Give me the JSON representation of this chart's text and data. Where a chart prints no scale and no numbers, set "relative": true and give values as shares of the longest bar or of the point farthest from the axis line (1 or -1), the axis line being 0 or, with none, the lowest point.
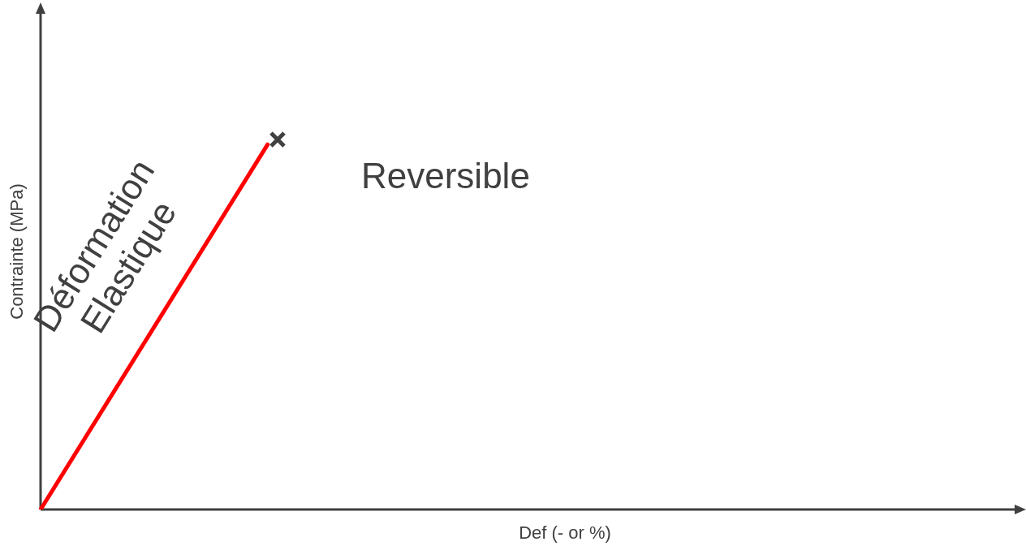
{
  "chart_data": {
    "type": "line",
    "relative": true,
    "xlabel": "Def (- or %)",
    "ylabel": "Contrainte (MPa)",
    "annotations": [
      "Déformation\nElastique",
      "Reversible"
    ],
    "categories": [
      null,
      null,
      null,
      null,
      null,
      null,
      null,
      null,
      null,
      null,
      null,
      null,
      null,
      null
    ],
    "series": [
      {
        "color": "#ff0000",
        "values": [
          0,
          null,
          null,
          1,
          null,
          null,
          null,
          null,
          null,
          null,
          null,
          null,
          null,
          null
        ],
        "marker": "none"
      }
    ],
    "legend": false
  }
}
